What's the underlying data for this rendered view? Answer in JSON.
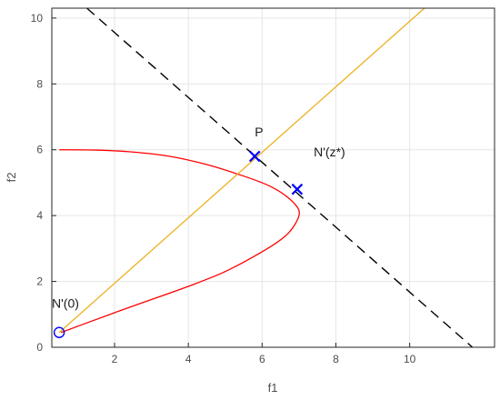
{
  "chart_data": {
    "type": "line",
    "xlabel": "f1",
    "ylabel": "f2",
    "xlim": [
      0.3,
      12.3
    ],
    "ylim": [
      0,
      10.3
    ],
    "xticks": [
      2,
      4,
      6,
      8,
      10
    ],
    "yticks": [
      0,
      2,
      4,
      6,
      8,
      10
    ],
    "grid": true,
    "series": [
      {
        "kind": "curve",
        "color": "#ff0000",
        "style": "solid",
        "points": [
          [
            0.5,
            6.0
          ],
          [
            1.5,
            5.99
          ],
          [
            2.5,
            5.93
          ],
          [
            3.5,
            5.8
          ],
          [
            4.5,
            5.55
          ],
          [
            5.5,
            5.2
          ],
          [
            6.2,
            4.9
          ],
          [
            6.7,
            4.55
          ],
          [
            7.0,
            4.15
          ],
          [
            6.9,
            3.75
          ],
          [
            6.6,
            3.35
          ],
          [
            6.0,
            2.9
          ],
          [
            5.0,
            2.3
          ],
          [
            4.0,
            1.85
          ],
          [
            3.0,
            1.45
          ],
          [
            2.0,
            1.05
          ],
          [
            1.2,
            0.72
          ],
          [
            0.55,
            0.45
          ]
        ]
      },
      {
        "kind": "line",
        "color": "#edb120",
        "style": "solid",
        "points": [
          [
            0.5,
            0.45
          ],
          [
            10.4,
            10.3
          ]
        ]
      },
      {
        "kind": "line",
        "color": "#000000",
        "style": "dashed",
        "points": [
          [
            1.25,
            10.3
          ],
          [
            11.7,
            0.0
          ]
        ]
      }
    ],
    "markers": [
      {
        "symbol": "x",
        "color": "#0000ff",
        "x": 5.8,
        "y": 5.8
      },
      {
        "symbol": "x",
        "color": "#0000ff",
        "x": 6.95,
        "y": 4.8
      },
      {
        "symbol": "o",
        "color": "#0000ff",
        "x": 0.5,
        "y": 0.45
      }
    ],
    "annotations": [
      {
        "text": "P",
        "x": 5.8,
        "y": 6.4
      },
      {
        "text": "N'(z*)",
        "x": 7.4,
        "y": 5.8
      },
      {
        "text": "N'(0)",
        "x": 0.3,
        "y": 1.2
      }
    ]
  }
}
